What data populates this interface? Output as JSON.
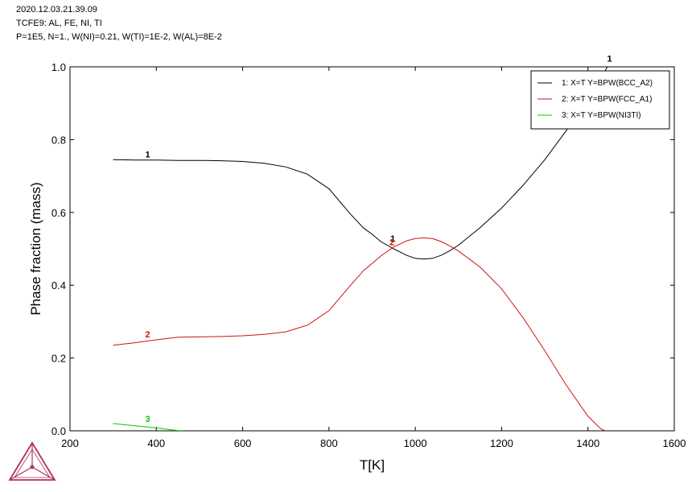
{
  "header": {
    "line1": "2020.12.03.21.39.09",
    "line2": "TCFE9: AL, FE, NI, TI",
    "line3": "P=1E5, N=1., W(NI)=0.21, W(TI)=1E-2, W(AL)=8E-2"
  },
  "logo": {
    "name": "thermo-calc-logo-icon",
    "color": "#b03060"
  },
  "chart_data": {
    "type": "line",
    "xlabel": "T[K]",
    "ylabel": "Phase fraction (mass)",
    "xlim": [
      200,
      1600
    ],
    "ylim": [
      0,
      1.0
    ],
    "xticks": [
      "200",
      "400",
      "600",
      "800",
      "1000",
      "1200",
      "1400",
      "1600"
    ],
    "yticks": [
      "0.0",
      "0.2",
      "0.4",
      "0.6",
      "0.8",
      "1.0"
    ],
    "legend_position": "top-right",
    "series": [
      {
        "name": "1:  X=T  Y=BPW(BCC_A2)",
        "label": "1",
        "color": "#000000",
        "x": [
          300,
          350,
          400,
          450,
          500,
          550,
          600,
          650,
          700,
          750,
          800,
          850,
          880,
          900,
          920,
          950,
          980,
          1000,
          1020,
          1040,
          1060,
          1080,
          1100,
          1150,
          1200,
          1250,
          1300,
          1350,
          1400,
          1430,
          1445
        ],
        "y": [
          0.745,
          0.744,
          0.744,
          0.743,
          0.743,
          0.742,
          0.74,
          0.735,
          0.725,
          0.705,
          0.665,
          0.595,
          0.557,
          0.54,
          0.52,
          0.5,
          0.482,
          0.474,
          0.472,
          0.474,
          0.482,
          0.495,
          0.51,
          0.558,
          0.612,
          0.675,
          0.745,
          0.825,
          0.915,
          0.97,
          1.0
        ]
      },
      {
        "name": "2:  X=T  Y=BPW(FCC_A1)",
        "label": "2",
        "color": "#d01010",
        "x": [
          300,
          350,
          400,
          450,
          500,
          550,
          600,
          650,
          700,
          750,
          800,
          850,
          880,
          900,
          920,
          950,
          980,
          1000,
          1020,
          1040,
          1060,
          1080,
          1100,
          1150,
          1200,
          1250,
          1300,
          1350,
          1400,
          1430,
          1440
        ],
        "y": [
          0.235,
          0.242,
          0.25,
          0.257,
          0.258,
          0.259,
          0.261,
          0.265,
          0.272,
          0.29,
          0.33,
          0.4,
          0.44,
          0.46,
          0.48,
          0.505,
          0.522,
          0.528,
          0.53,
          0.528,
          0.52,
          0.508,
          0.494,
          0.45,
          0.39,
          0.31,
          0.22,
          0.125,
          0.04,
          0.005,
          0.0
        ]
      },
      {
        "name": "3:  X=T  Y=BPW(NI3TI)",
        "label": "3",
        "color": "#00cc00",
        "x": [
          300,
          350,
          400,
          440,
          460
        ],
        "y": [
          0.02,
          0.014,
          0.008,
          0.002,
          0.0
        ]
      }
    ],
    "curve_labels": [
      {
        "text": "1",
        "series": 0,
        "x": 380,
        "y": 0.747
      },
      {
        "text": "2",
        "series": 1,
        "x": 380,
        "y": 0.252
      },
      {
        "text": "3",
        "series": 2,
        "x": 380,
        "y": 0.02
      },
      {
        "text": "1",
        "series": 0,
        "x": 1450,
        "y": 1.01
      },
      {
        "text": "1",
        "series": 0,
        "x": 948,
        "y": 0.515
      },
      {
        "text": "2",
        "series": 1,
        "x": 946,
        "y": 0.505
      }
    ]
  }
}
